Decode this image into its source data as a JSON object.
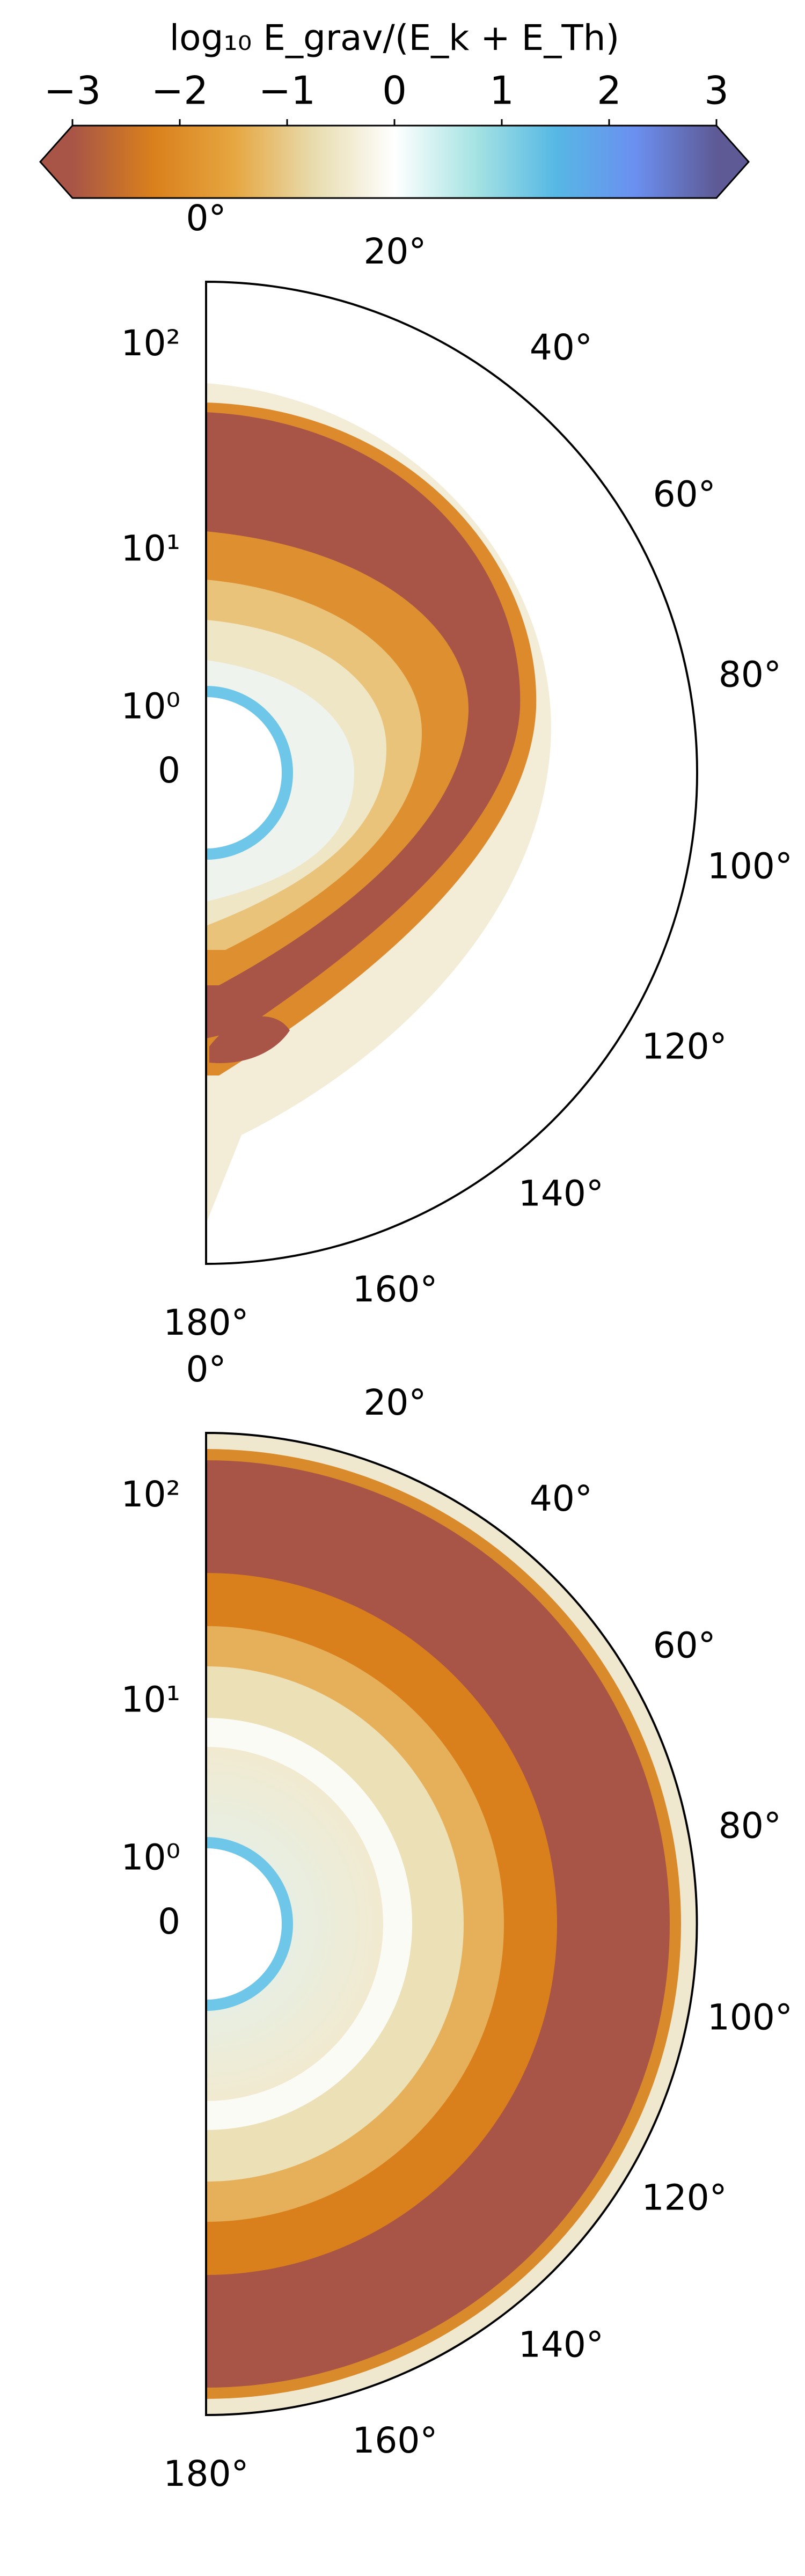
{
  "chart_data": [
    {
      "type": "colorbar",
      "label": "log₁₀ E_grav/(E_k + E_Th)",
      "xlim": [
        -3,
        3
      ],
      "xticks": [
        {
          "value": -3,
          "label": "−3"
        },
        {
          "value": -2,
          "label": "−2"
        },
        {
          "value": -1,
          "label": "−1"
        },
        0,
        1,
        2,
        3
      ],
      "colors": [
        "#a85547",
        "#d9801c",
        "#e6a640",
        "#e8dcae",
        "#ffffff",
        "#a6e3e3",
        "#56b8e4",
        "#6b8ff0",
        "#5e5a95"
      ],
      "extend": "both"
    },
    {
      "type": "polar",
      "thetaticks": [
        {
          "value": 0,
          "label": "0°"
        },
        {
          "value": 20,
          "label": "20°"
        },
        {
          "value": 40,
          "label": "40°"
        },
        {
          "value": 60,
          "label": "60°"
        },
        {
          "value": 80,
          "label": "80°"
        },
        {
          "value": 100,
          "label": "100°"
        },
        {
          "value": 120,
          "label": "120°"
        },
        {
          "value": 140,
          "label": "140°"
        },
        {
          "value": 160,
          "label": "160°"
        },
        {
          "value": 180,
          "label": "180°"
        }
      ],
      "rlim": [
        0,
        200
      ],
      "rticks": [
        0,
        {
          "value": 1,
          "label": "10⁰"
        },
        {
          "value": 10,
          "label": "10¹"
        },
        {
          "value": 100,
          "label": "10²"
        }
      ]
    },
    {
      "type": "polar",
      "thetaticks": [
        {
          "value": 0,
          "label": "0°"
        },
        {
          "value": 20,
          "label": "20°"
        },
        {
          "value": 40,
          "label": "40°"
        },
        {
          "value": 60,
          "label": "60°"
        },
        {
          "value": 80,
          "label": "80°"
        },
        {
          "value": 100,
          "label": "100°"
        },
        {
          "value": 120,
          "label": "120°"
        },
        {
          "value": 140,
          "label": "140°"
        },
        {
          "value": 160,
          "label": "160°"
        },
        {
          "value": 180,
          "label": "180°"
        }
      ],
      "rlim": [
        0,
        200
      ],
      "rticks": [
        0,
        {
          "value": 1,
          "label": "10⁰"
        },
        {
          "value": 10,
          "label": "10¹"
        },
        {
          "value": 100,
          "label": "10²"
        }
      ]
    }
  ]
}
